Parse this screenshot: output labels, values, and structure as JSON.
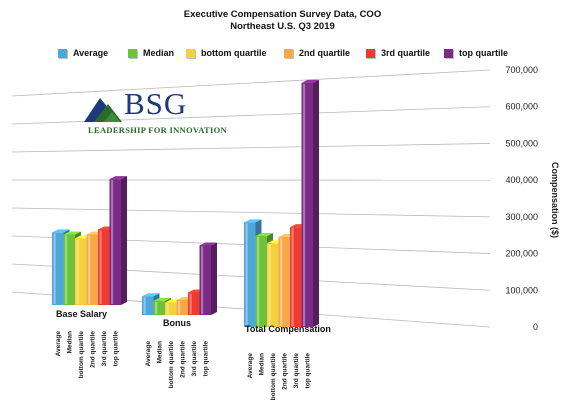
{
  "chart_data": {
    "type": "bar",
    "title": "Executive Compensation Survey Data, COO",
    "subtitle": "Northeast U.S. Q3 2019",
    "ylabel": "Compensation ($)",
    "ylim": [
      0,
      700000
    ],
    "yticks": [
      "0",
      "100,000",
      "200,000",
      "300,000",
      "400,000",
      "500,000",
      "600,000",
      "700,000"
    ],
    "categories": [
      "Base Salary",
      "Bonus",
      "Total Compensation"
    ],
    "bar_labels": [
      "Average",
      "Median",
      "bottom quartile",
      "2nd quartile",
      "3rd quartile",
      "top quartile"
    ],
    "series": [
      {
        "name": "Average",
        "color": "#4fa6d8",
        "values": [
          245000,
          60000,
          285000
        ]
      },
      {
        "name": "Median",
        "color": "#6cc23a",
        "values": [
          238000,
          45000,
          248000
        ]
      },
      {
        "name": "bottom quartile",
        "color": "#f4d03a",
        "values": [
          225000,
          40000,
          228000
        ]
      },
      {
        "name": "2nd quartile",
        "color": "#f5a84a",
        "values": [
          238000,
          48000,
          245000
        ]
      },
      {
        "name": "3rd quartile",
        "color": "#ee3b2e",
        "values": [
          255000,
          72000,
          272000
        ]
      },
      {
        "name": "top quartile",
        "color": "#7b2a86",
        "values": [
          425000,
          222000,
          665000
        ]
      }
    ],
    "grid": true,
    "legend_position": "top"
  },
  "logo": {
    "text": "BSG",
    "tagline": "LEADERSHIP FOR INNOVATION"
  }
}
